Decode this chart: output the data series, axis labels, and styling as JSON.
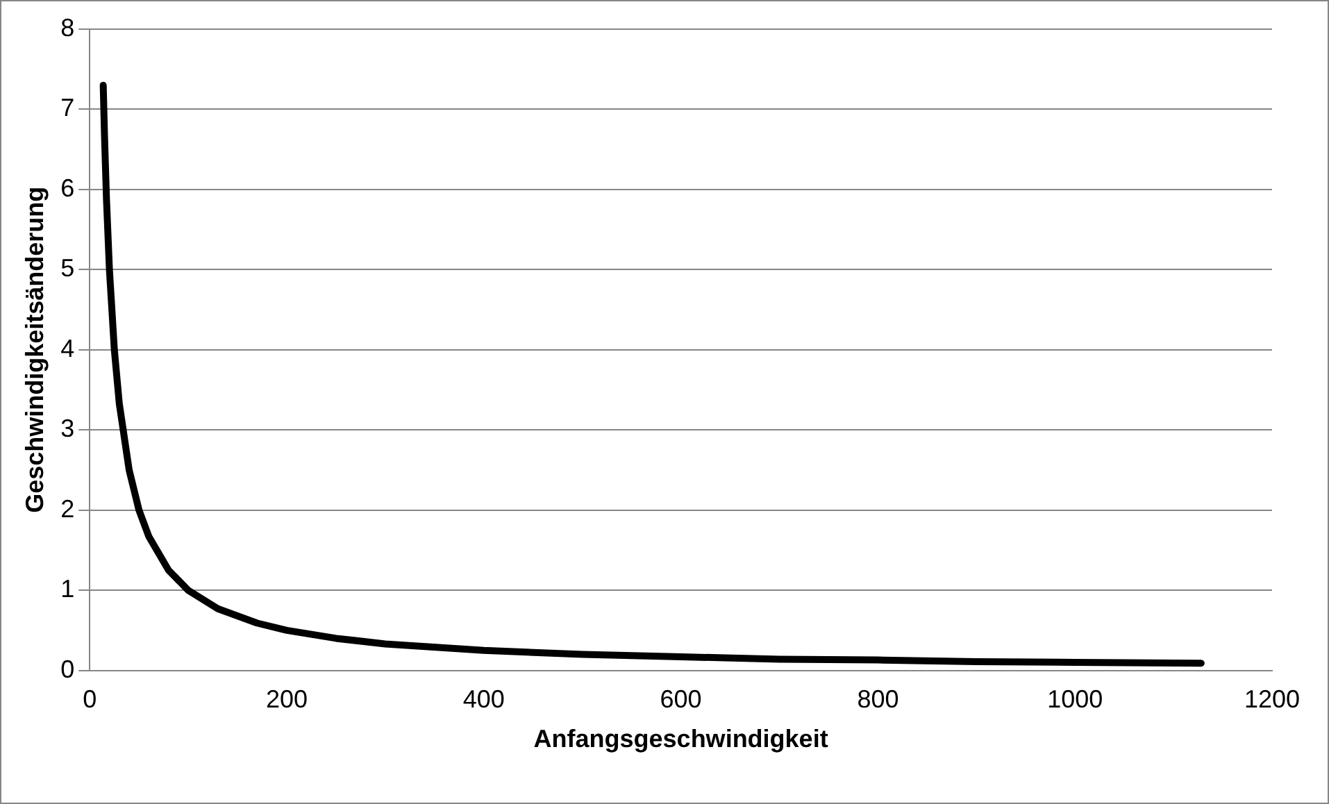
{
  "chart_data": {
    "type": "line",
    "xlabel": "Anfangsgeschwindigkeit",
    "ylabel": "Geschwindigkeitsänderung",
    "x": [
      13.7,
      15,
      17,
      20,
      25,
      30,
      40,
      50,
      60,
      80,
      100,
      130,
      170,
      200,
      250,
      300,
      400,
      500,
      600,
      700,
      800,
      900,
      1000,
      1128
    ],
    "series": [
      {
        "color": "#000000",
        "values": [
          7.3,
          6.67,
          5.88,
          5,
          4,
          3.33,
          2.5,
          2,
          1.67,
          1.25,
          1,
          0.77,
          0.59,
          0.5,
          0.4,
          0.33,
          0.25,
          0.2,
          0.17,
          0.14,
          0.13,
          0.11,
          0.1,
          0.09
        ]
      }
    ],
    "xlim": [
      0,
      1200
    ],
    "xticks": [
      0,
      200,
      400,
      600,
      800,
      1000,
      1200
    ],
    "ylim": [
      0,
      8
    ],
    "yticks": [
      0,
      1,
      2,
      3,
      4,
      5,
      6,
      7,
      8
    ],
    "grid": "y",
    "legend": false,
    "marker": "none",
    "line_style": "solid"
  }
}
